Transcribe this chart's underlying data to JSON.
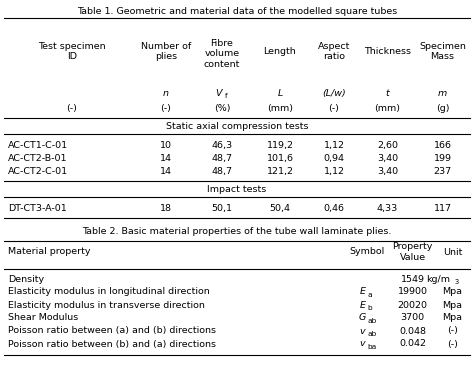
{
  "table1_title": "Table 1. Geometric and material data of the modelled square tubes",
  "col_headers": [
    "Test specimen\nID",
    "Number of\nplies",
    "Fibre\nvolume\ncontent",
    "Length",
    "Aspect\nratio",
    "Thickness",
    "Specimen\nMass"
  ],
  "sym_row": [
    "",
    "n",
    "Vf",
    "L",
    "(L/w)",
    "t",
    "m"
  ],
  "sym_italic": [
    false,
    true,
    true,
    true,
    true,
    true,
    true
  ],
  "unit_row": [
    "(-)",
    "(-)",
    "(%)",
    "(mm)",
    "(-)",
    "(mm)",
    "(g)"
  ],
  "static_label": "Static axial compression tests",
  "static_rows": [
    [
      "AC-CT1-C-01",
      "10",
      "46,3",
      "119,2",
      "1,12",
      "2,60",
      "166"
    ],
    [
      "AC-CT2-B-01",
      "14",
      "48,7",
      "101,6",
      "0,94",
      "3,40",
      "199"
    ],
    [
      "AC-CT2-C-01",
      "14",
      "48,7",
      "121,2",
      "1,12",
      "3,40",
      "237"
    ]
  ],
  "impact_label": "Impact tests",
  "impact_rows": [
    [
      "DT-CT3-A-01",
      "18",
      "50,1",
      "50,4",
      "0,46",
      "4,33",
      "117"
    ]
  ],
  "table2_title": "Table 2. Basic material properties of the tube wall laminate plies.",
  "table2_col_headers": [
    "Material property",
    "Symbol",
    "Property\nValue",
    "Unit"
  ],
  "table2_rows": [
    [
      "Density",
      "",
      "1549",
      "kg/m3"
    ],
    [
      "Elasticity modulus in longitudinal direction",
      "Ea",
      "19900",
      "Mpa"
    ],
    [
      "Elasticity modulus in transverse direction",
      "Eb",
      "20020",
      "Mpa"
    ],
    [
      "Shear Modulus",
      "Gab",
      "3700",
      "Mpa"
    ],
    [
      "Poisson ratio between (a) and (b) directions",
      "vab",
      "0.048",
      "(-)"
    ],
    [
      "Poisson ratio between (b) and (a) directions",
      "vba",
      "0.042",
      "(-)"
    ]
  ],
  "symbol_bases": {
    "Ea": "E",
    "Eb": "E",
    "Gab": "G",
    "vab": "v",
    "vba": "v"
  },
  "symbol_subs": {
    "Ea": "a",
    "Eb": "b",
    "Gab": "ab",
    "vab": "ab",
    "vba": "ba"
  },
  "bg_color": "#ffffff",
  "text_color": "#000000",
  "border_color": "#000000",
  "font_size": 6.8
}
